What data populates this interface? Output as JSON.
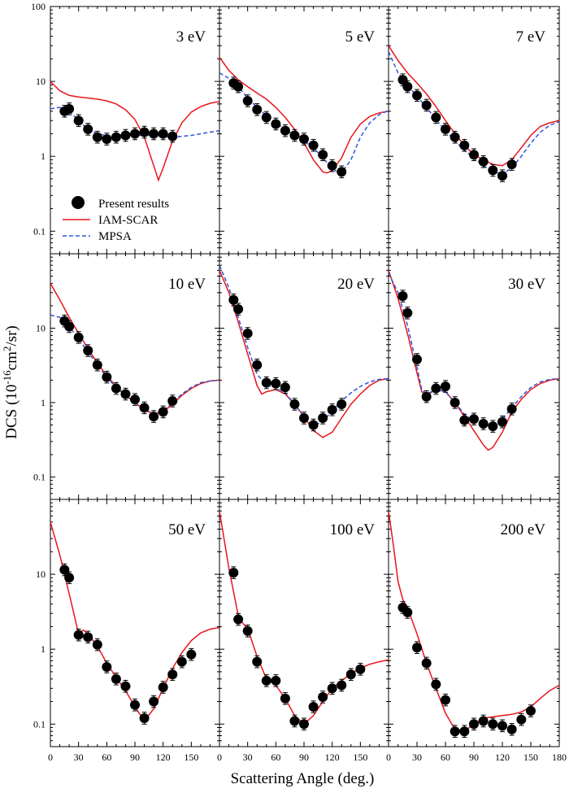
{
  "figure": {
    "ylabel": "DCS (10",
    "ylabel_exp": "-16",
    "ylabel_mid": "cm",
    "ylabel_exp2": "2",
    "ylabel_end": "/sr)",
    "xlabel": "Scattering Angle (deg.)"
  },
  "colors": {
    "iam_scar": "#e8141b",
    "mpsa": "#2e55d6",
    "present": "#000000"
  },
  "legend": {
    "present": "Present results",
    "iam_scar": "IAM-SCAR",
    "mpsa": "MPSA",
    "placement": "lower-left of 3 eV panel"
  },
  "axes": {
    "x_ticks": [
      0,
      30,
      60,
      90,
      120,
      150
    ],
    "x_ticks_last": [
      0,
      30,
      60,
      90,
      120,
      150,
      180
    ],
    "x_range": [
      0,
      180
    ],
    "y_scale": "log",
    "y_range": [
      0.05,
      100
    ],
    "y_ticks_top": [
      "0.1",
      "1",
      "10",
      "100"
    ],
    "y_ticks": [
      "0.1",
      "1",
      "10"
    ]
  },
  "chart_data": [
    {
      "type": "scatter",
      "title": "3 eV",
      "experiment": {
        "x": [
          15,
          20,
          30,
          40,
          50,
          60,
          70,
          80,
          90,
          100,
          110,
          120,
          130
        ],
        "y": [
          4.0,
          4.3,
          3.0,
          2.3,
          1.8,
          1.7,
          1.8,
          1.9,
          2.0,
          2.1,
          2.0,
          2.0,
          1.85
        ]
      },
      "iam_scar": {
        "x": [
          0,
          10,
          20,
          30,
          40,
          50,
          60,
          70,
          80,
          90,
          100,
          110,
          115,
          120,
          130,
          140,
          150,
          160,
          170,
          180
        ],
        "y": [
          10,
          7.5,
          6.5,
          6.2,
          6.0,
          5.8,
          5.5,
          5.0,
          4.2,
          3.1,
          1.8,
          0.75,
          0.48,
          0.7,
          1.6,
          2.8,
          3.9,
          4.6,
          5.1,
          5.4
        ]
      },
      "mpsa": {
        "x": [
          0,
          10,
          20,
          30,
          40,
          50,
          60,
          70,
          80,
          90,
          100,
          110,
          120,
          130,
          140,
          150,
          160,
          170,
          180
        ],
        "y": [
          4.3,
          4.5,
          4.0,
          3.0,
          2.3,
          2.0,
          1.9,
          1.9,
          1.9,
          1.9,
          1.9,
          1.9,
          1.85,
          1.8,
          1.85,
          1.9,
          2.0,
          2.1,
          2.2
        ]
      }
    },
    {
      "type": "scatter",
      "title": "5 eV",
      "experiment": {
        "x": [
          15,
          20,
          30,
          40,
          50,
          60,
          70,
          80,
          90,
          100,
          110,
          120,
          130
        ],
        "y": [
          9.5,
          8.5,
          5.5,
          4.2,
          3.3,
          2.7,
          2.2,
          1.9,
          1.7,
          1.4,
          1.05,
          0.75,
          0.62
        ]
      },
      "iam_scar": {
        "x": [
          0,
          10,
          20,
          30,
          40,
          50,
          60,
          70,
          80,
          90,
          100,
          110,
          115,
          120,
          130,
          140,
          150,
          160,
          170,
          180
        ],
        "y": [
          21,
          14,
          10.5,
          8.5,
          7.0,
          5.8,
          4.5,
          3.3,
          2.3,
          1.5,
          0.9,
          0.62,
          0.6,
          0.65,
          0.95,
          1.8,
          2.7,
          3.4,
          3.8,
          4.0
        ]
      },
      "mpsa": {
        "x": [
          0,
          10,
          20,
          30,
          40,
          50,
          60,
          70,
          80,
          90,
          100,
          110,
          120,
          125,
          130,
          140,
          150,
          160,
          170,
          180
        ],
        "y": [
          13,
          11,
          8.5,
          6.0,
          4.5,
          3.5,
          2.8,
          2.3,
          1.9,
          1.6,
          1.3,
          0.95,
          0.7,
          0.62,
          0.6,
          0.9,
          1.8,
          2.8,
          3.6,
          4.1
        ]
      }
    },
    {
      "type": "scatter",
      "title": "7 eV",
      "experiment": {
        "x": [
          15,
          20,
          30,
          40,
          50,
          60,
          70,
          80,
          90,
          100,
          110,
          120,
          130
        ],
        "y": [
          10.5,
          8.5,
          6.5,
          4.8,
          3.3,
          2.3,
          1.8,
          1.4,
          1.05,
          0.85,
          0.65,
          0.55,
          0.78
        ]
      },
      "iam_scar": {
        "x": [
          0,
          10,
          20,
          30,
          40,
          50,
          60,
          70,
          80,
          90,
          100,
          110,
          120,
          130,
          140,
          150,
          160,
          170,
          180
        ],
        "y": [
          30,
          19,
          13,
          9.5,
          6.8,
          4.6,
          3.0,
          2.0,
          1.4,
          1.05,
          0.9,
          0.78,
          0.75,
          0.9,
          1.3,
          1.9,
          2.5,
          2.8,
          3.0
        ]
      },
      "mpsa": {
        "x": [
          0,
          10,
          20,
          30,
          40,
          50,
          60,
          70,
          80,
          90,
          100,
          110,
          120,
          130,
          140,
          150,
          160,
          170,
          180
        ],
        "y": [
          25,
          13,
          9.0,
          6.3,
          4.5,
          3.1,
          2.2,
          1.6,
          1.2,
          0.95,
          0.75,
          0.62,
          0.58,
          0.7,
          1.0,
          1.5,
          2.1,
          2.6,
          2.9
        ]
      }
    },
    {
      "type": "scatter",
      "title": "10 eV",
      "experiment": {
        "x": [
          15,
          20,
          30,
          40,
          50,
          60,
          70,
          80,
          90,
          100,
          110,
          120,
          130
        ],
        "y": [
          12.5,
          10.5,
          7.5,
          5.0,
          3.2,
          2.2,
          1.55,
          1.3,
          1.1,
          0.85,
          0.65,
          0.75,
          1.05
        ]
      },
      "iam_scar": {
        "x": [
          0,
          10,
          20,
          30,
          40,
          50,
          60,
          70,
          80,
          90,
          100,
          110,
          120,
          130,
          140,
          150,
          160,
          170,
          180
        ],
        "y": [
          40,
          24,
          14,
          8.5,
          5.3,
          3.4,
          2.3,
          1.65,
          1.25,
          1.0,
          0.8,
          0.7,
          0.75,
          0.95,
          1.25,
          1.55,
          1.8,
          1.95,
          2.0
        ]
      },
      "mpsa": {
        "x": [
          0,
          10,
          20,
          30,
          40,
          50,
          60,
          70,
          80,
          90,
          100,
          110,
          120,
          130,
          140,
          150,
          160,
          170,
          180
        ],
        "y": [
          15,
          14,
          10.5,
          7.2,
          4.8,
          3.2,
          2.2,
          1.6,
          1.25,
          1.0,
          0.82,
          0.72,
          0.78,
          1.0,
          1.3,
          1.6,
          1.85,
          1.95,
          2.0
        ]
      }
    },
    {
      "type": "scatter",
      "title": "20 eV",
      "experiment": {
        "x": [
          15,
          20,
          30,
          40,
          50,
          60,
          70,
          80,
          90,
          100,
          110,
          120,
          130
        ],
        "y": [
          24,
          18,
          8.5,
          3.2,
          1.85,
          1.8,
          1.6,
          0.95,
          0.62,
          0.5,
          0.62,
          0.8,
          0.95
        ]
      },
      "iam_scar": {
        "x": [
          0,
          10,
          20,
          30,
          40,
          45,
          50,
          60,
          70,
          80,
          90,
          100,
          110,
          120,
          130,
          140,
          150,
          160,
          170,
          180
        ],
        "y": [
          60,
          30,
          12,
          4.5,
          1.7,
          1.3,
          1.4,
          1.5,
          1.3,
          0.95,
          0.65,
          0.42,
          0.34,
          0.4,
          0.62,
          0.95,
          1.3,
          1.7,
          2.0,
          2.1
        ]
      },
      "mpsa": {
        "x": [
          0,
          10,
          20,
          30,
          40,
          50,
          60,
          70,
          80,
          90,
          100,
          110,
          120,
          130,
          140,
          150,
          160,
          170,
          180
        ],
        "y": [
          70,
          35,
          14,
          5.5,
          2.4,
          1.7,
          1.6,
          1.35,
          0.95,
          0.65,
          0.5,
          0.55,
          0.78,
          1.05,
          1.35,
          1.65,
          1.9,
          2.05,
          2.1
        ]
      }
    },
    {
      "type": "scatter",
      "title": "30 eV",
      "experiment": {
        "x": [
          15,
          20,
          30,
          40,
          50,
          60,
          70,
          80,
          90,
          100,
          110,
          120,
          130
        ],
        "y": [
          27,
          16,
          3.8,
          1.2,
          1.55,
          1.65,
          1.0,
          0.58,
          0.6,
          0.52,
          0.48,
          0.55,
          0.82
        ]
      },
      "iam_scar": {
        "x": [
          0,
          10,
          20,
          30,
          35,
          40,
          50,
          60,
          70,
          80,
          90,
          100,
          105,
          110,
          120,
          130,
          140,
          150,
          160,
          170,
          180
        ],
        "y": [
          60,
          25,
          8.5,
          2.5,
          1.4,
          1.25,
          1.5,
          1.4,
          1.0,
          0.65,
          0.42,
          0.27,
          0.23,
          0.25,
          0.4,
          0.75,
          1.1,
          1.5,
          1.8,
          2.0,
          2.1
        ]
      },
      "mpsa": {
        "x": [
          0,
          10,
          20,
          30,
          35,
          40,
          50,
          60,
          70,
          80,
          90,
          100,
          110,
          120,
          130,
          140,
          150,
          160,
          170,
          180
        ],
        "y": [
          55,
          30,
          11,
          3.0,
          1.5,
          1.3,
          1.5,
          1.4,
          1.0,
          0.7,
          0.55,
          0.5,
          0.5,
          0.6,
          0.85,
          1.2,
          1.6,
          1.9,
          2.05,
          2.1
        ]
      }
    },
    {
      "type": "scatter",
      "title": "50 eV",
      "experiment": {
        "x": [
          15,
          20,
          30,
          40,
          50,
          60,
          70,
          80,
          90,
          100,
          110,
          120,
          130,
          140,
          150
        ],
        "y": [
          11.5,
          9.0,
          1.55,
          1.45,
          1.15,
          0.58,
          0.4,
          0.32,
          0.18,
          0.12,
          0.2,
          0.31,
          0.46,
          0.68,
          0.85
        ]
      },
      "iam_scar": {
        "x": [
          0,
          10,
          20,
          30,
          35,
          40,
          50,
          60,
          70,
          80,
          90,
          100,
          110,
          120,
          130,
          140,
          150,
          160,
          170,
          180
        ],
        "y": [
          50,
          18,
          5.5,
          1.6,
          1.8,
          1.6,
          1.1,
          0.65,
          0.42,
          0.28,
          0.17,
          0.11,
          0.16,
          0.3,
          0.55,
          0.9,
          1.3,
          1.65,
          1.85,
          1.95
        ]
      }
    },
    {
      "type": "scatter",
      "title": "100 eV",
      "experiment": {
        "x": [
          15,
          20,
          30,
          40,
          50,
          60,
          70,
          80,
          90,
          100,
          110,
          120,
          130,
          140,
          150
        ],
        "y": [
          10.5,
          2.5,
          1.75,
          0.68,
          0.38,
          0.38,
          0.22,
          0.11,
          0.1,
          0.17,
          0.23,
          0.3,
          0.33,
          0.46,
          0.54
        ]
      },
      "iam_scar": {
        "x": [
          0,
          10,
          20,
          25,
          30,
          40,
          50,
          60,
          70,
          80,
          90,
          100,
          110,
          120,
          130,
          140,
          150,
          160,
          170,
          180
        ],
        "y": [
          70,
          12,
          2.8,
          2.2,
          1.9,
          0.8,
          0.4,
          0.33,
          0.22,
          0.13,
          0.1,
          0.13,
          0.2,
          0.3,
          0.38,
          0.47,
          0.56,
          0.63,
          0.68,
          0.72
        ]
      }
    },
    {
      "type": "scatter",
      "title": "200 eV",
      "experiment": {
        "x": [
          15,
          20,
          30,
          40,
          50,
          60,
          70,
          80,
          90,
          100,
          110,
          120,
          130,
          140,
          150
        ],
        "y": [
          3.6,
          3.1,
          1.05,
          0.65,
          0.34,
          0.21,
          0.08,
          0.08,
          0.1,
          0.11,
          0.1,
          0.095,
          0.085,
          0.115,
          0.15
        ]
      },
      "iam_scar": {
        "x": [
          0,
          5,
          10,
          15,
          20,
          30,
          40,
          50,
          60,
          70,
          80,
          90,
          100,
          110,
          120,
          130,
          140,
          150,
          160,
          170,
          180
        ],
        "y": [
          70,
          25,
          8,
          4.6,
          3.6,
          1.6,
          0.65,
          0.3,
          0.14,
          0.085,
          0.08,
          0.1,
          0.12,
          0.125,
          0.13,
          0.135,
          0.145,
          0.17,
          0.22,
          0.28,
          0.33
        ]
      }
    }
  ]
}
